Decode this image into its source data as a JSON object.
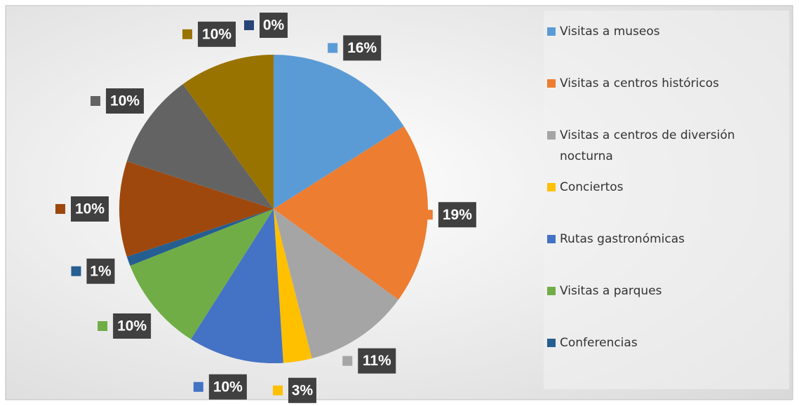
{
  "chart_data": {
    "type": "pie",
    "categories": [
      "Visitas a museos",
      "Visitas a centros históricos",
      "Visitas a centros de diversión nocturna",
      "Conciertos",
      "Rutas gastronómicas",
      "Visitas a parques",
      "Conferencias",
      null,
      null,
      null,
      null
    ],
    "values": [
      16,
      19,
      11,
      3,
      10,
      10,
      1,
      10,
      10,
      10,
      0
    ],
    "value_labels": [
      "16%",
      "19%",
      "11%",
      "3%",
      "10%",
      "10%",
      "1%",
      "10%",
      "10%",
      "10%",
      "0%"
    ],
    "colors": [
      "#5b9bd5",
      "#ed7d31",
      "#a5a5a5",
      "#ffc000",
      "#4472c4",
      "#70ad47",
      "#255e91",
      "#9e480e",
      "#636363",
      "#997300",
      "#264478"
    ]
  }
}
